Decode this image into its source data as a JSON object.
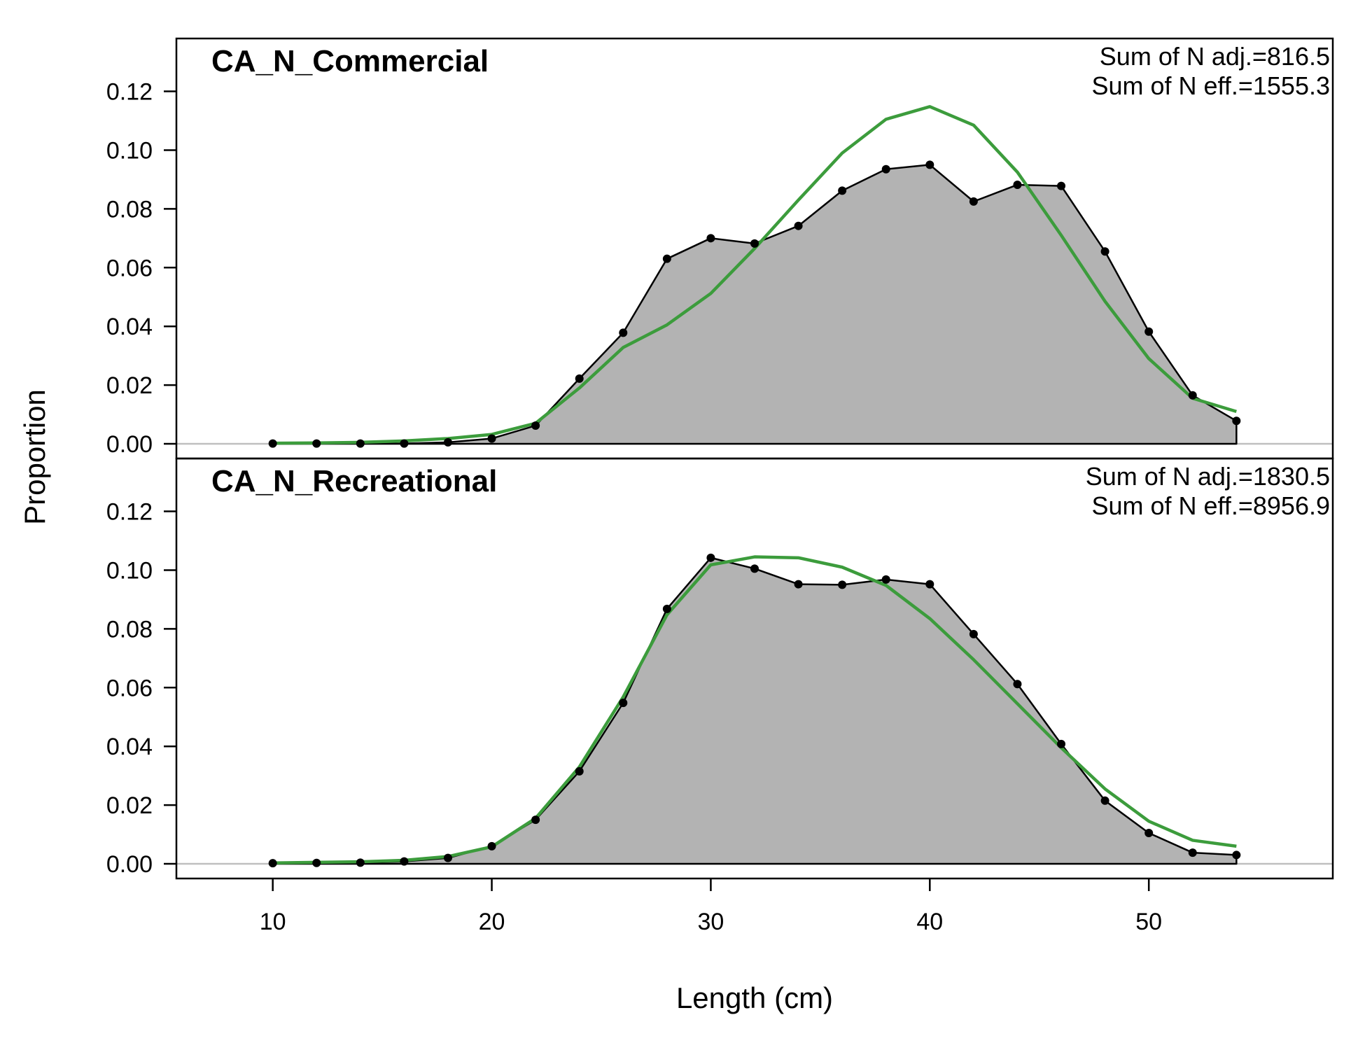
{
  "chart_data": {
    "type": "area",
    "xlabel": "Length (cm)",
    "ylabel": "Proportion",
    "xlim": [
      5.6,
      58.4
    ],
    "ylim": [
      -0.005,
      0.138
    ],
    "x_ticks": [
      10,
      20,
      30,
      40,
      50
    ],
    "y_ticks": [
      0.0,
      0.02,
      0.04,
      0.06,
      0.08,
      0.1,
      0.12
    ],
    "y_tick_labels": [
      "0.00",
      "0.02",
      "0.04",
      "0.06",
      "0.08",
      "0.10",
      "0.12"
    ],
    "colors": {
      "observed_fill": "#b3b3b3",
      "observed_line": "#000000",
      "expected_line": "#3c9c3c",
      "zero_line": "#bfbfbf"
    },
    "x": [
      10,
      12,
      14,
      16,
      18,
      20,
      22,
      24,
      26,
      28,
      30,
      32,
      34,
      36,
      38,
      40,
      42,
      44,
      46,
      48,
      50,
      52,
      54
    ],
    "panels": [
      {
        "title": "CA_N_Commercial",
        "annotation_1": "Sum of N adj.=816.5",
        "annotation_2": "Sum of N eff.=1555.3",
        "observed": [
          0.0001,
          0.0001,
          0.0001,
          0.0001,
          0.0005,
          0.0018,
          0.0062,
          0.0222,
          0.0378,
          0.063,
          0.07,
          0.0682,
          0.0742,
          0.0862,
          0.0935,
          0.095,
          0.0825,
          0.0882,
          0.0878,
          0.0655,
          0.0382,
          0.0165,
          0.0078
        ],
        "expected": [
          0.0002,
          0.0003,
          0.0005,
          0.001,
          0.0018,
          0.0032,
          0.007,
          0.019,
          0.0328,
          0.0405,
          0.0512,
          0.0665,
          0.083,
          0.099,
          0.1105,
          0.1148,
          0.1085,
          0.0925,
          0.071,
          0.0485,
          0.029,
          0.0155,
          0.011
        ]
      },
      {
        "title": "CA_N_Recreational",
        "annotation_1": "Sum of N adj.=1830.5",
        "annotation_2": "Sum of N eff.=8956.9",
        "observed": [
          0.0002,
          0.0003,
          0.0004,
          0.0008,
          0.002,
          0.006,
          0.015,
          0.0315,
          0.0548,
          0.0868,
          0.1042,
          0.1005,
          0.0952,
          0.095,
          0.0968,
          0.0952,
          0.0782,
          0.0612,
          0.0408,
          0.0215,
          0.0105,
          0.0038,
          0.003
        ],
        "expected": [
          0.0003,
          0.0005,
          0.0007,
          0.0012,
          0.0025,
          0.0058,
          0.0155,
          0.033,
          0.0568,
          0.0848,
          0.1018,
          0.1045,
          0.1042,
          0.101,
          0.0948,
          0.0835,
          0.0695,
          0.0545,
          0.0395,
          0.0255,
          0.0145,
          0.008,
          0.006
        ]
      }
    ]
  }
}
